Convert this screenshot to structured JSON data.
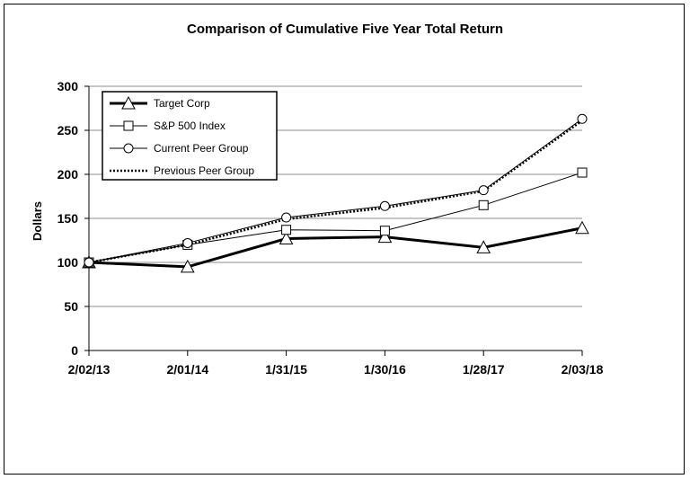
{
  "chart_data": {
    "type": "line",
    "title": "Comparison of Cumulative Five Year Total Return",
    "xlabel": "",
    "ylabel": "Dollars",
    "ylim": [
      0,
      300
    ],
    "yticks": [
      0,
      50,
      100,
      150,
      200,
      250,
      300
    ],
    "grid": true,
    "legend_position": "top-left",
    "categories": [
      "2/02/13",
      "2/01/14",
      "1/31/15",
      "1/30/16",
      "1/28/17",
      "2/03/18"
    ],
    "series": [
      {
        "name": "Target Corp",
        "marker": "triangle",
        "line": "thick-solid",
        "values": [
          100,
          95,
          127,
          129,
          117,
          139
        ]
      },
      {
        "name": "S&P 500 Index",
        "marker": "square",
        "line": "thin-solid",
        "values": [
          100,
          120,
          137,
          136,
          165,
          202
        ]
      },
      {
        "name": "Current Peer Group",
        "marker": "circle",
        "line": "thin-solid",
        "values": [
          100,
          122,
          151,
          164,
          182,
          263
        ]
      },
      {
        "name": "Previous Peer Group",
        "marker": "none",
        "line": "dotted",
        "values": [
          100,
          120,
          149,
          162,
          181,
          261
        ]
      }
    ]
  }
}
